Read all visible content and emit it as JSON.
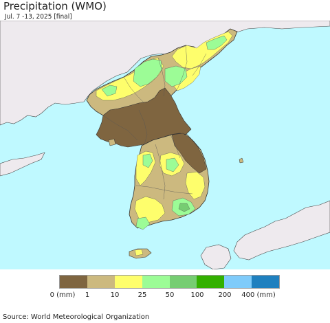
{
  "header": {
    "title": "Precipitation (WMO)",
    "subtitle": "Jul. 7 -13, 2025 [final]"
  },
  "legend": {
    "colors": [
      "#7f6540",
      "#ccb97f",
      "#fefe6c",
      "#9cfc96",
      "#76cd72",
      "#33b000",
      "#7fcbfa",
      "#1f80bf"
    ],
    "labels": [
      "0 (mm)",
      "1",
      "10",
      "25",
      "50",
      "100",
      "200",
      "400 (mm)"
    ]
  },
  "colors": {
    "sea": "#bff9ff",
    "land_outside": "#eeeaee",
    "border": "#333333"
  },
  "footer": {
    "source": "Source: World Meteorological Organization"
  }
}
